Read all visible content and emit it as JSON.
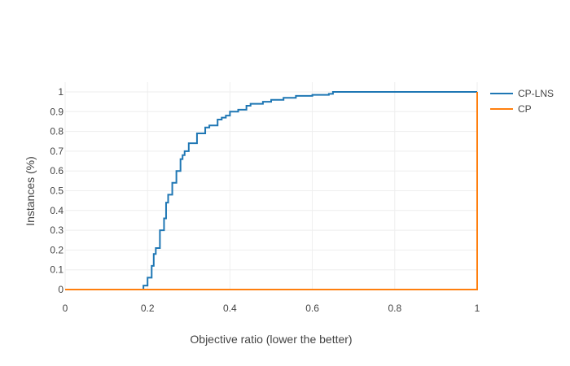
{
  "chart_data": {
    "type": "line",
    "title": "",
    "xlabel": "Objective ratio (lower the better)",
    "ylabel": "Instances (%)",
    "xlim": [
      0,
      1
    ],
    "ylim": [
      0,
      1
    ],
    "grid": true,
    "legend_position": "top-right",
    "x_ticks": [
      "0",
      "0.2",
      "0.4",
      "0.6",
      "0.8",
      "1"
    ],
    "y_ticks": [
      "0",
      "0.1",
      "0.2",
      "0.3",
      "0.4",
      "0.5",
      "0.6",
      "0.7",
      "0.8",
      "0.9",
      "1"
    ],
    "series": [
      {
        "name": "CP-LNS",
        "color": "#1f77b4",
        "x": [
          0,
          0.18,
          0.19,
          0.2,
          0.21,
          0.215,
          0.22,
          0.23,
          0.24,
          0.245,
          0.25,
          0.26,
          0.27,
          0.28,
          0.285,
          0.29,
          0.3,
          0.32,
          0.34,
          0.35,
          0.37,
          0.38,
          0.39,
          0.4,
          0.42,
          0.44,
          0.45,
          0.48,
          0.5,
          0.53,
          0.56,
          0.6,
          0.64,
          0.65,
          0.7,
          0.8,
          0.9,
          1.0
        ],
        "y": [
          0,
          0,
          0.02,
          0.06,
          0.12,
          0.18,
          0.21,
          0.3,
          0.36,
          0.44,
          0.48,
          0.54,
          0.6,
          0.66,
          0.68,
          0.7,
          0.74,
          0.79,
          0.82,
          0.83,
          0.86,
          0.87,
          0.88,
          0.9,
          0.91,
          0.93,
          0.94,
          0.95,
          0.96,
          0.97,
          0.98,
          0.985,
          0.99,
          1.0,
          1.0,
          1.0,
          1.0,
          1.0
        ]
      },
      {
        "name": "CP",
        "color": "#ff7f0e",
        "x": [
          0,
          1.0,
          1.0
        ],
        "y": [
          0,
          0,
          1.0
        ]
      }
    ]
  }
}
